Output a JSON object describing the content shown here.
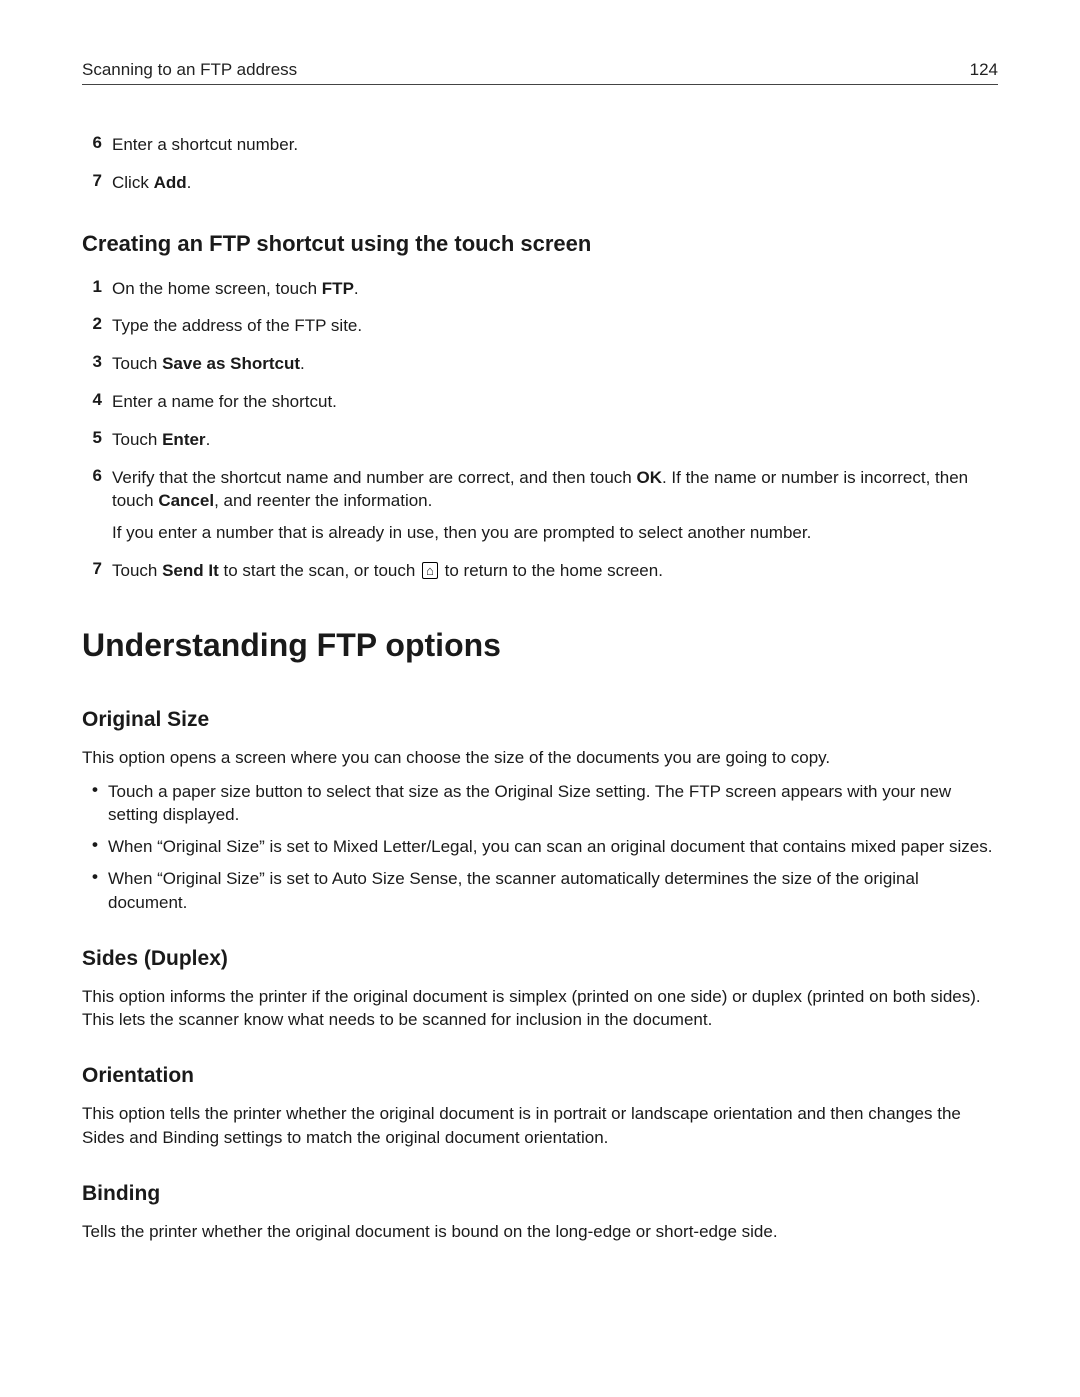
{
  "header": {
    "title": "Scanning to an FTP address",
    "page_number": "124"
  },
  "colors": {
    "text": "#1a1a1a",
    "rule": "#444444",
    "background": "#ffffff"
  },
  "top_steps_start": 6,
  "top_steps": [
    {
      "plain": "Enter a shortcut number."
    },
    {
      "pre": "Click ",
      "bold": "Add",
      "post": "."
    }
  ],
  "section1": {
    "heading": "Creating an FTP shortcut using the touch screen",
    "steps": [
      {
        "pre": "On the home screen, touch ",
        "bold": "FTP",
        "post": "."
      },
      {
        "plain": "Type the address of the FTP site."
      },
      {
        "pre": "Touch ",
        "bold": "Save as Shortcut",
        "post": "."
      },
      {
        "plain": "Enter a name for the shortcut."
      },
      {
        "pre": "Touch ",
        "bold": "Enter",
        "post": "."
      },
      {
        "runs": [
          {
            "t": "Verify that the shortcut name and number are correct, and then touch "
          },
          {
            "t": "OK",
            "b": true
          },
          {
            "t": ". If the name or number is incorrect, then touch "
          },
          {
            "t": "Cancel",
            "b": true
          },
          {
            "t": ", and reenter the information."
          }
        ],
        "sub": "If you enter a number that is already in use, then you are prompted to select another number."
      },
      {
        "runs": [
          {
            "t": "Touch "
          },
          {
            "t": "Send It",
            "b": true
          },
          {
            "t": " to start the scan, or touch "
          },
          {
            "icon": "home"
          },
          {
            "t": " to return to the home screen."
          }
        ]
      }
    ]
  },
  "section2": {
    "heading": "Understanding FTP options",
    "subsections": [
      {
        "heading": "Original Size",
        "intro": "This option opens a screen where you can choose the size of the documents you are going to copy.",
        "bullets": [
          "Touch a paper size button to select that size as the Original Size setting. The FTP screen appears with your new setting displayed.",
          "When “Original Size” is set to Mixed Letter/Legal, you can scan an original document that contains mixed paper sizes.",
          "When “Original Size” is set to Auto Size Sense, the scanner automatically determines the size of the original document."
        ]
      },
      {
        "heading": "Sides (Duplex)",
        "intro": "This option informs the printer if the original document is simplex (printed on one side) or duplex (printed on both sides). This lets the scanner know what needs to be scanned for inclusion in the document."
      },
      {
        "heading": "Orientation",
        "intro": "This option tells the printer whether the original document is in portrait or landscape orientation and then changes the Sides and Binding settings to match the original document orientation."
      },
      {
        "heading": "Binding",
        "intro": "Tells the printer whether the original document is bound on the long-edge or short-edge side."
      }
    ]
  }
}
